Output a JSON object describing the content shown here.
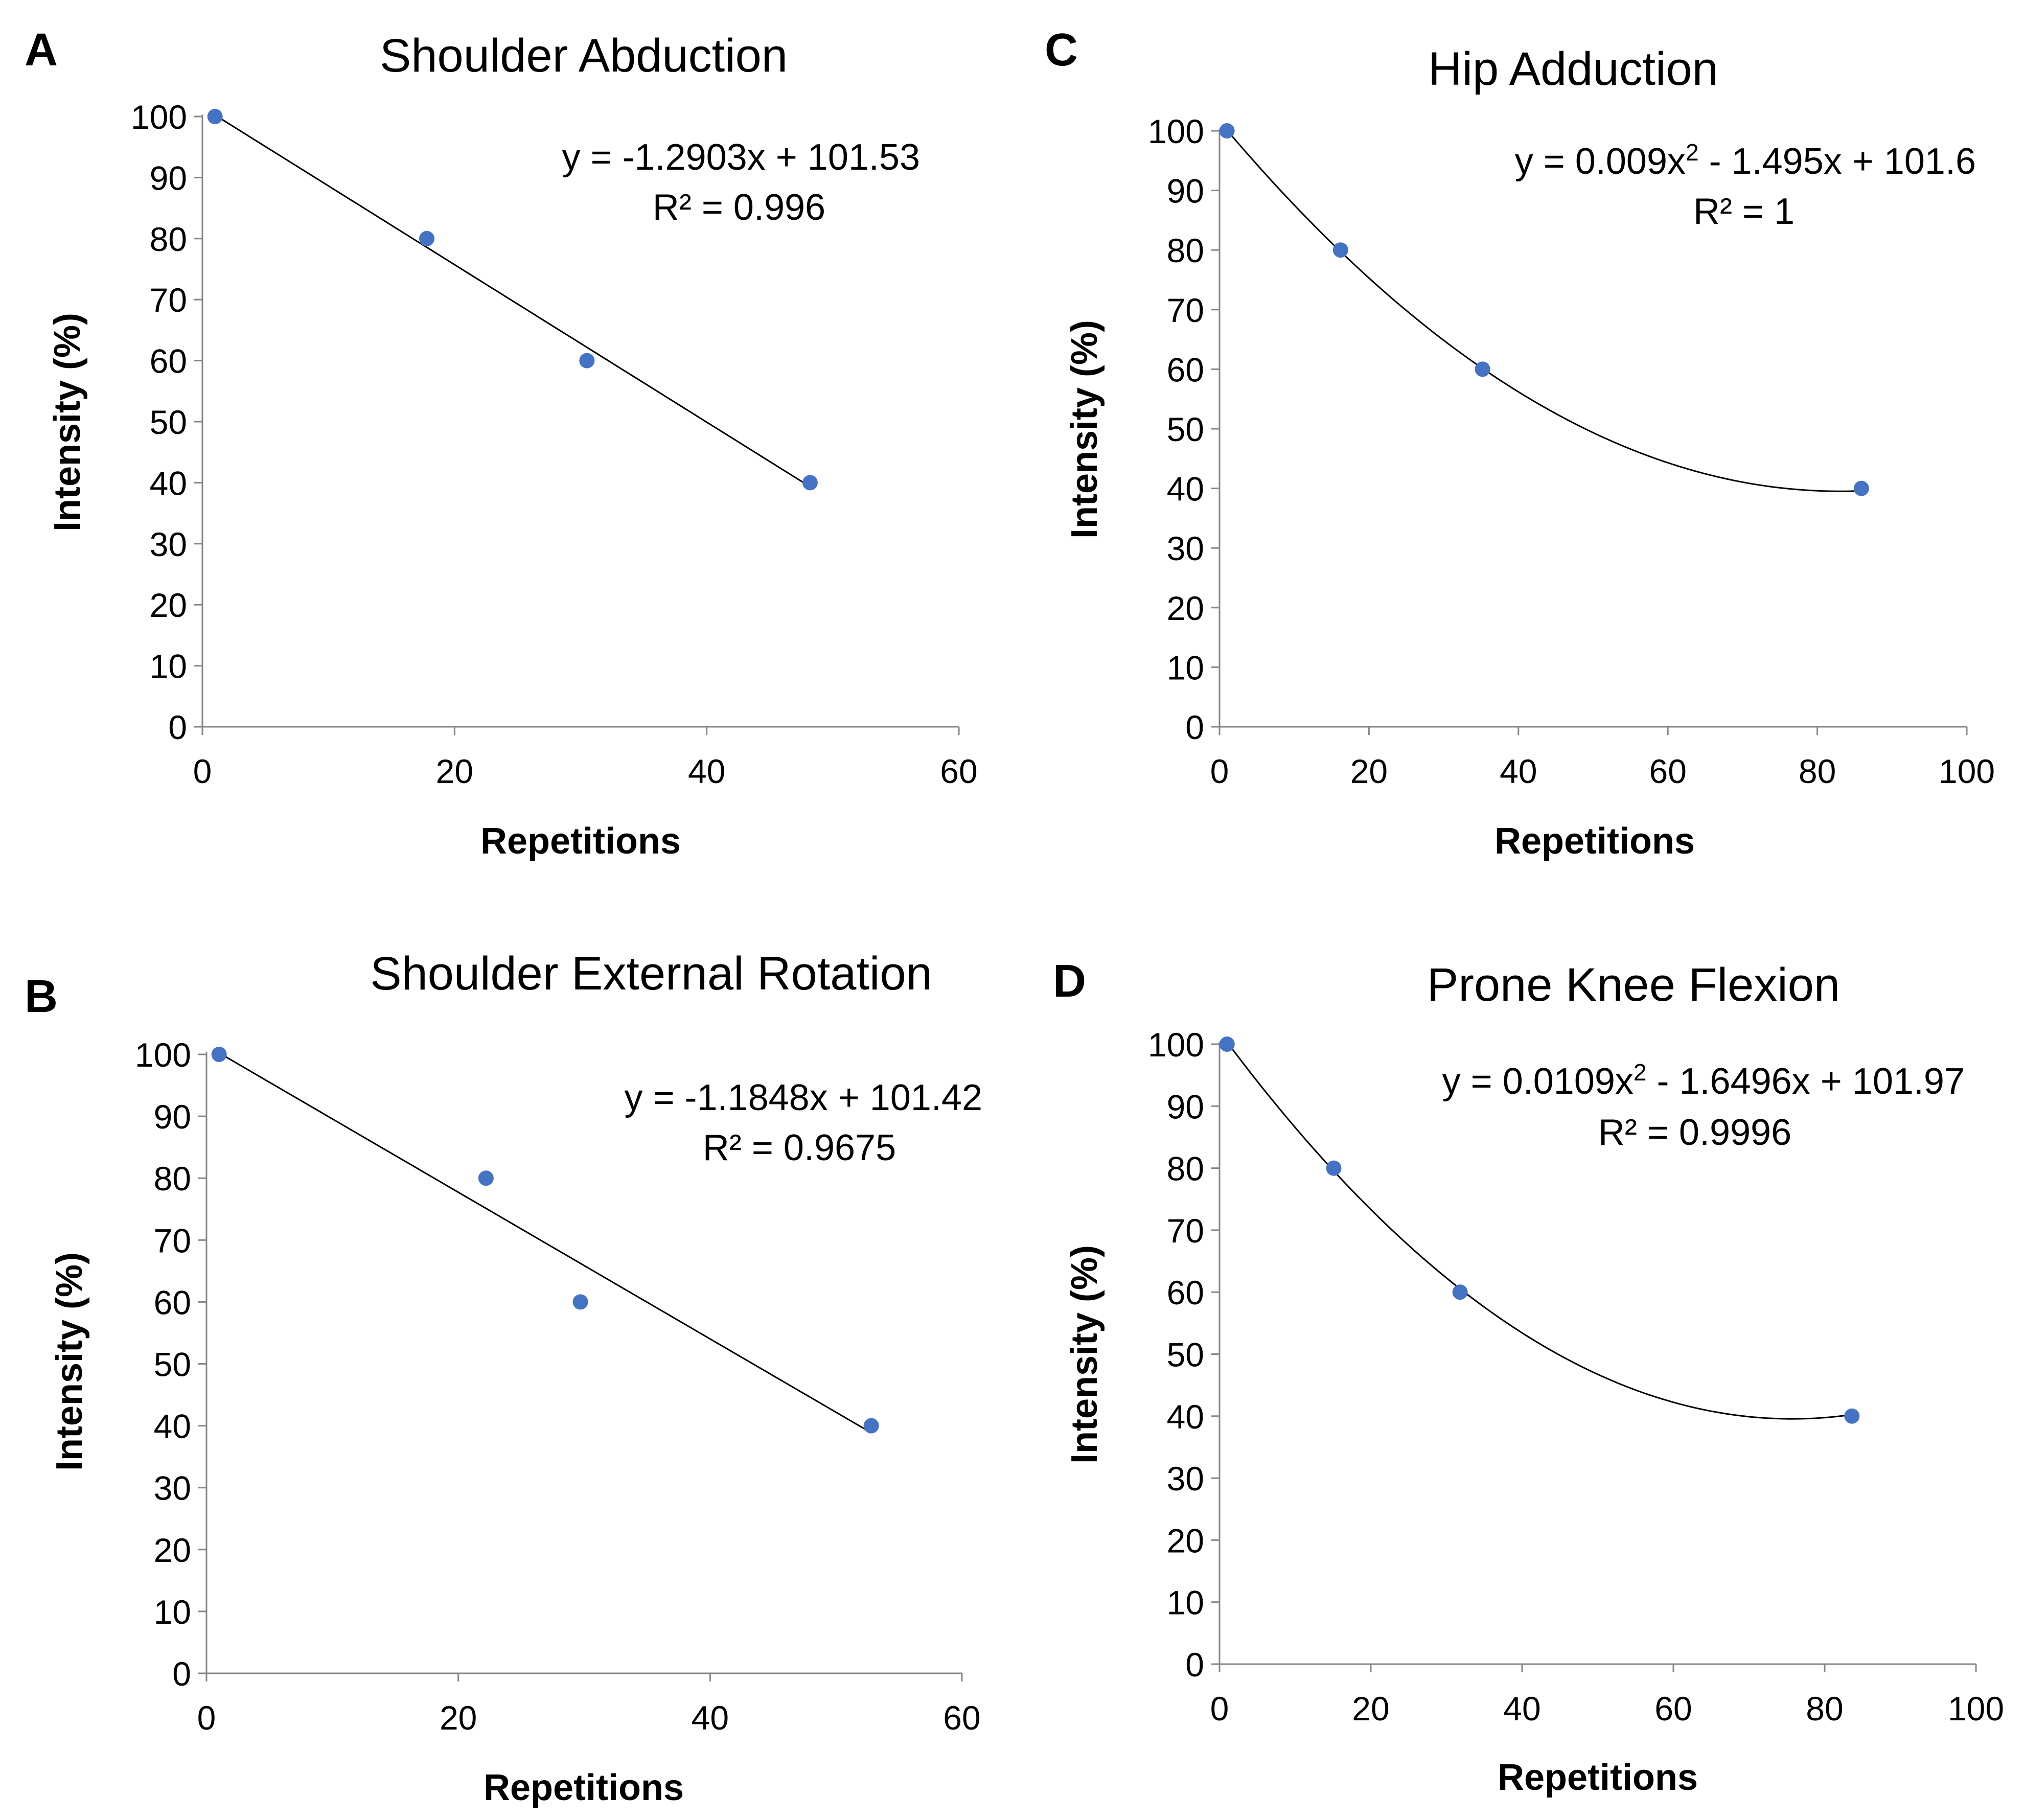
{
  "colors": {
    "point": "#4472c4",
    "axis": "#868686",
    "trendline": "#000000",
    "text": "#000000"
  },
  "chart_data": [
    {
      "letter": "A",
      "type": "scatter",
      "title": "Shoulder Abduction",
      "xlabel": "Repetitions",
      "ylabel": "Intensity (%)",
      "xlim": [
        0,
        60
      ],
      "ylim": [
        0,
        100
      ],
      "xticks": [
        0,
        20,
        40,
        60
      ],
      "yticks": [
        0,
        10,
        20,
        30,
        40,
        50,
        60,
        70,
        80,
        90,
        100
      ],
      "grid": false,
      "points": [
        {
          "x": 1,
          "y": 100
        },
        {
          "x": 17.8,
          "y": 80
        },
        {
          "x": 30.5,
          "y": 60
        },
        {
          "x": 48.2,
          "y": 40
        }
      ],
      "trendline": {
        "kind": "linear",
        "coefficients": [
          -1.2903,
          101.53
        ],
        "x_range": [
          1,
          48.2
        ]
      },
      "equation": {
        "line1_pre": "y = -1.2903x + 101.53",
        "line1_sup": "",
        "line1_post": "",
        "line2": "R² = 0.996"
      }
    },
    {
      "letter": "B",
      "type": "scatter",
      "title": "Shoulder External Rotation",
      "xlabel": "Repetitions",
      "ylabel": "Intensity (%)",
      "xlim": [
        0,
        60
      ],
      "ylim": [
        0,
        100
      ],
      "xticks": [
        0,
        20,
        40,
        60
      ],
      "yticks": [
        0,
        10,
        20,
        30,
        40,
        50,
        60,
        70,
        80,
        90,
        100
      ],
      "grid": false,
      "points": [
        {
          "x": 1,
          "y": 100
        },
        {
          "x": 22.2,
          "y": 80
        },
        {
          "x": 29.7,
          "y": 60
        },
        {
          "x": 52.8,
          "y": 40
        }
      ],
      "trendline": {
        "kind": "linear",
        "coefficients": [
          -1.1848,
          101.42
        ],
        "x_range": [
          1,
          52.8
        ]
      },
      "equation": {
        "line1_pre": "y = -1.1848x + 101.42",
        "line1_sup": "",
        "line1_post": "",
        "line2": "R² = 0.9675"
      }
    },
    {
      "letter": "C",
      "type": "scatter",
      "title": "Hip Adduction",
      "xlabel": "Repetitions",
      "ylabel": "Intensity (%)",
      "xlim": [
        0,
        100
      ],
      "ylim": [
        0,
        100
      ],
      "xticks": [
        0,
        20,
        40,
        60,
        80,
        100
      ],
      "yticks": [
        0,
        10,
        20,
        30,
        40,
        50,
        60,
        70,
        80,
        90,
        100
      ],
      "grid": false,
      "points": [
        {
          "x": 1,
          "y": 100
        },
        {
          "x": 16.2,
          "y": 80
        },
        {
          "x": 35.2,
          "y": 60
        },
        {
          "x": 85.9,
          "y": 40
        }
      ],
      "trendline": {
        "kind": "poly2",
        "coefficients": [
          0.009,
          -1.495,
          101.6
        ],
        "x_range": [
          1,
          85.9
        ]
      },
      "equation": {
        "line1_pre": "y = 0.009x",
        "line1_sup": "2",
        "line1_post": " - 1.495x + 101.6",
        "line2": "R² = 1"
      }
    },
    {
      "letter": "D",
      "type": "scatter",
      "title": "Prone Knee Flexion",
      "xlabel": "Repetitions",
      "ylabel": "Intensity (%)",
      "xlim": [
        0,
        100
      ],
      "ylim": [
        0,
        100
      ],
      "xticks": [
        0,
        20,
        40,
        60,
        80,
        100
      ],
      "yticks": [
        0,
        10,
        20,
        30,
        40,
        50,
        60,
        70,
        80,
        90,
        100
      ],
      "grid": false,
      "points": [
        {
          "x": 1,
          "y": 100
        },
        {
          "x": 15.1,
          "y": 80
        },
        {
          "x": 31.8,
          "y": 60
        },
        {
          "x": 83.6,
          "y": 40
        }
      ],
      "trendline": {
        "kind": "poly2",
        "coefficients": [
          0.0109,
          -1.6496,
          101.97
        ],
        "x_range": [
          1,
          83.6
        ]
      },
      "equation": {
        "line1_pre": "y = 0.0109x",
        "line1_sup": "2",
        "line1_post": " - 1.6496x + 101.97",
        "line2": "R² = 0.9996"
      }
    }
  ]
}
